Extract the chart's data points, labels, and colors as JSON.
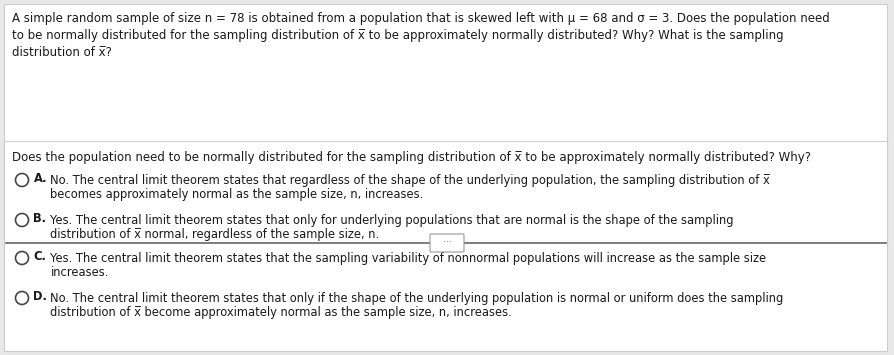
{
  "bg_color": "#e8e8e8",
  "top_box_bg": "#ffffff",
  "bottom_box_bg": "#ffffff",
  "top_text_line1": "A simple random sample of size n = 78 is obtained from a population that is skewed left with μ = 68 and σ = 3. Does the population need",
  "top_text_line2": "to be normally distributed for the sampling distribution of x̅ to be approximately normally distributed? Why? What is the sampling",
  "top_text_line3": "distribution of x̅?",
  "question_text": "Does the population need to be normally distributed for the sampling distribution of x̅ to be approximately normally distributed? Why?",
  "option_A_label": "A.",
  "option_A_text1": "No. The central limit theorem states that regardless of the shape of the underlying population, the sampling distribution of x̅",
  "option_A_text2": "becomes approximately normal as the sample size, n, increases.",
  "option_B_label": "B.",
  "option_B_text1": "Yes. The central limit theorem states that only for underlying populations that are normal is the shape of the sampling",
  "option_B_text2": "distribution of x̅ normal, regardless of the sample size, n.",
  "option_C_label": "C.",
  "option_C_text1": "Yes. The central limit theorem states that the sampling variability of nonnormal populations will increase as the sample size",
  "option_C_text2": "increases.",
  "option_D_label": "D.",
  "option_D_text1": "No. The central limit theorem states that only if the shape of the underlying population is normal or uniform does the sampling",
  "option_D_text2": "distribution of x̅ become approximately normal as the sample size, n, increases.",
  "font_size_top": 8.5,
  "font_size_question": 8.5,
  "font_size_options": 8.3,
  "text_color": "#1a1a1a",
  "line_color": "#888888",
  "divider_color": "#666666"
}
